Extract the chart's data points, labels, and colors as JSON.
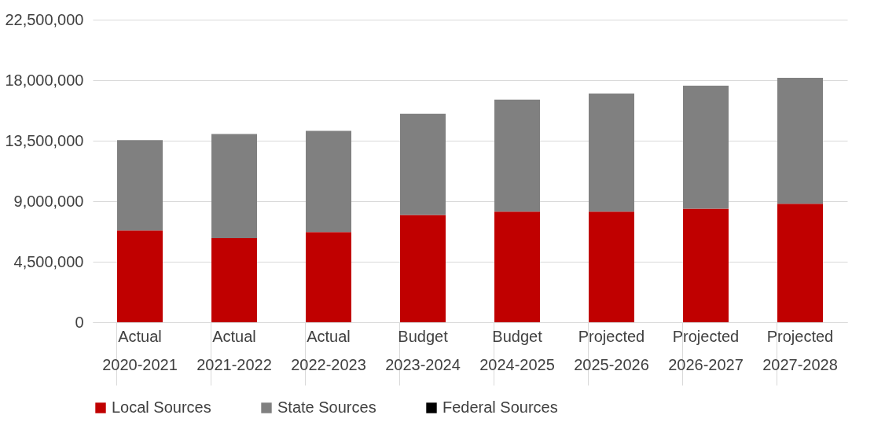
{
  "chart_data": {
    "type": "bar",
    "stacked": true,
    "categories": [
      "Actual 2020-2021",
      "Actual 2021-2022",
      "Actual 2022-2023",
      "Budget 2023-2024",
      "Budget 2024-2025",
      "Projected 2025-2026",
      "Projected 2026-2027",
      "Projected 2027-2028"
    ],
    "series": [
      {
        "name": "Local Sources",
        "color": "#c00000",
        "values": [
          6830000,
          6250000,
          6700000,
          7970000,
          8230000,
          8230000,
          8440000,
          8810000
        ]
      },
      {
        "name": "State Sources",
        "color": "#808080",
        "values": [
          6720000,
          7740000,
          7530000,
          7530000,
          8320000,
          8780000,
          9150000,
          9360000
        ]
      },
      {
        "name": "Federal Sources",
        "color": "#000000",
        "values": [
          0,
          0,
          0,
          0,
          0,
          0,
          0,
          0
        ]
      }
    ],
    "ylim": [
      0,
      22500000
    ],
    "yticks": [
      0,
      {
        "value": 4500000,
        "label": "4,500,000"
      },
      {
        "value": 9000000,
        "label": "9,000,000"
      },
      {
        "value": 13500000,
        "label": "13,500,000"
      },
      {
        "value": 18000000,
        "label": "18,000,000"
      },
      {
        "value": 22500000,
        "label": "22,500,000"
      }
    ],
    "grid": "y",
    "legend": "bottom"
  }
}
